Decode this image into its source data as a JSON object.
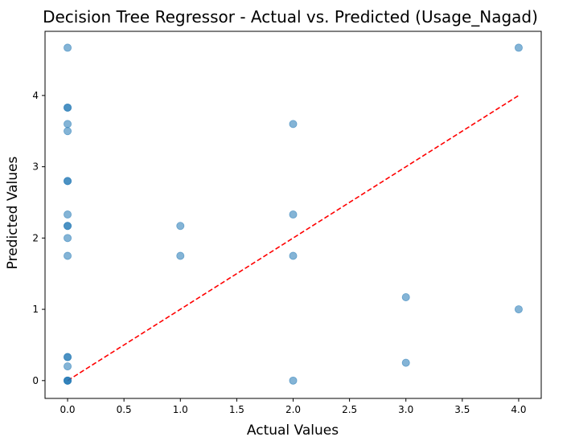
{
  "chart_data": {
    "type": "scatter",
    "title": "Decision Tree Regressor - Actual vs. Predicted (Usage_Nagad)",
    "xlabel": "Actual Values",
    "ylabel": "Predicted Values",
    "xlim": [
      -0.2,
      4.2
    ],
    "ylim": [
      -0.25,
      4.9
    ],
    "x_ticks": [
      "0.0",
      "0.5",
      "1.0",
      "1.5",
      "2.0",
      "2.5",
      "3.0",
      "3.5",
      "4.0"
    ],
    "y_ticks": [
      "0",
      "1",
      "2",
      "3",
      "4"
    ],
    "grid": false,
    "point_color": "#1f77b4",
    "point_alpha": 0.55,
    "reference_line": {
      "from": [
        0,
        0
      ],
      "to": [
        4,
        4
      ],
      "color": "#ff0000",
      "style": "dashed"
    },
    "points": [
      {
        "x": 0,
        "y": 4.67
      },
      {
        "x": 0,
        "y": 3.83
      },
      {
        "x": 0,
        "y": 3.83
      },
      {
        "x": 0,
        "y": 3.6
      },
      {
        "x": 0,
        "y": 3.5
      },
      {
        "x": 0,
        "y": 2.8
      },
      {
        "x": 0,
        "y": 2.8
      },
      {
        "x": 0,
        "y": 2.33
      },
      {
        "x": 0,
        "y": 2.17
      },
      {
        "x": 0,
        "y": 2.17
      },
      {
        "x": 0,
        "y": 2.0
      },
      {
        "x": 0,
        "y": 1.75
      },
      {
        "x": 0,
        "y": 0.33
      },
      {
        "x": 0,
        "y": 0.33
      },
      {
        "x": 0,
        "y": 0.2
      },
      {
        "x": 0,
        "y": 0.0
      },
      {
        "x": 0,
        "y": 0.0
      },
      {
        "x": 0,
        "y": 0.0
      },
      {
        "x": 1,
        "y": 2.17
      },
      {
        "x": 1,
        "y": 1.75
      },
      {
        "x": 2,
        "y": 3.6
      },
      {
        "x": 2,
        "y": 2.33
      },
      {
        "x": 2,
        "y": 1.75
      },
      {
        "x": 2,
        "y": 0.0
      },
      {
        "x": 3,
        "y": 1.17
      },
      {
        "x": 3,
        "y": 0.25
      },
      {
        "x": 4,
        "y": 4.67
      },
      {
        "x": 4,
        "y": 1.0
      }
    ]
  }
}
